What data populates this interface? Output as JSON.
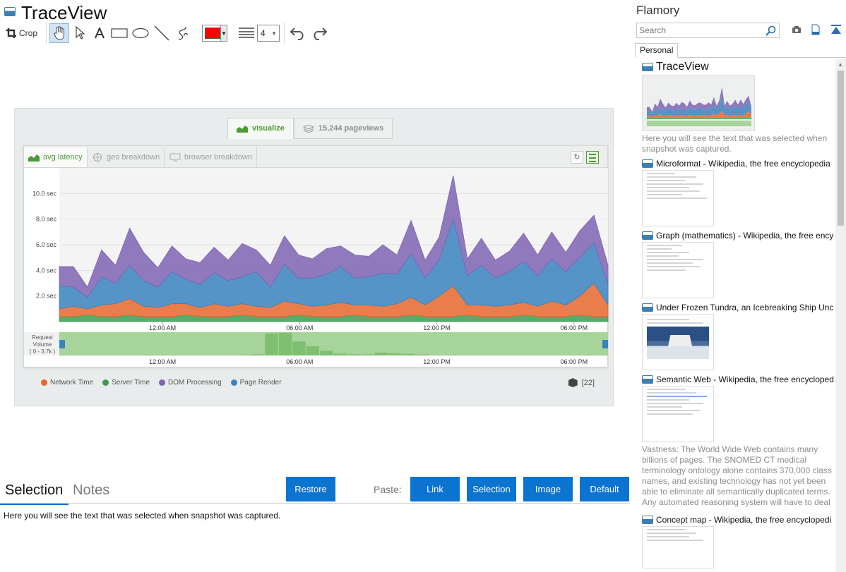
{
  "app": {
    "title": "TraceView"
  },
  "toolbar": {
    "crop_label": "Crop",
    "pen_color": "#ff0000",
    "line_width": "4",
    "tools": [
      "hand-icon",
      "pointer-icon",
      "text-icon",
      "rectangle-icon",
      "ellipse-icon",
      "line-icon",
      "freehand-icon",
      "color-picker",
      "line-style-icon",
      "width-selector",
      "undo-icon",
      "redo-icon"
    ]
  },
  "snapshot": {
    "tabs": {
      "visualize": "visualize",
      "pageviews": "15,244 pageviews"
    },
    "panel_tabs": [
      "avg latency",
      "geo breakdown",
      "browser breakdown"
    ],
    "request_volume_label": [
      "Request",
      "Volume",
      "( 0 - 3.7k )"
    ],
    "legend": [
      {
        "label": "Network Time",
        "color": "#e6672e"
      },
      {
        "label": "Server Time",
        "color": "#3f9b52"
      },
      {
        "label": "DOM Processing",
        "color": "#7e64b3"
      },
      {
        "label": "Page Render",
        "color": "#3a83c0"
      }
    ],
    "count": "[22]"
  },
  "chart_data": {
    "type": "area",
    "title": "",
    "xlabel": "",
    "ylabel": "",
    "y_ticks": [
      "10.0 sec",
      "8.0 sec",
      "6.0 sec",
      "4.0 sec",
      "2.0 sec"
    ],
    "x_ticks": [
      "12:00 AM",
      "06:00 AM",
      "12:00 PM",
      "06:00 PM"
    ],
    "ylim": [
      0,
      12
    ],
    "stacked": true,
    "series": [
      {
        "name": "Server Time",
        "color": "#3f9b52",
        "values": [
          0.4,
          0.4,
          0.5,
          0.4,
          0.4,
          0.5,
          0.4,
          0.4,
          0.4,
          0.5,
          0.4,
          0.4,
          0.4,
          0.5,
          0.4,
          0.4,
          0.4,
          0.5,
          0.4,
          0.4,
          0.4,
          0.5,
          0.4,
          0.4,
          0.4,
          0.5,
          0.4,
          0.4,
          0.4,
          0.5,
          0.4,
          0.4,
          0.4,
          0.5,
          0.4,
          0.4,
          0.4,
          0.5,
          0.4,
          0.4
        ]
      },
      {
        "name": "Network Time",
        "color": "#e6672e",
        "values": [
          0.6,
          0.8,
          0.5,
          0.9,
          1.0,
          1.3,
          0.8,
          0.7,
          1.0,
          0.9,
          0.7,
          1.0,
          0.8,
          0.9,
          0.8,
          0.7,
          1.2,
          0.9,
          0.8,
          0.9,
          1.1,
          0.8,
          0.9,
          0.8,
          1.0,
          1.4,
          0.9,
          1.6,
          2.4,
          0.8,
          0.9,
          0.8,
          0.9,
          1.0,
          0.8,
          1.2,
          0.9,
          1.5,
          2.6,
          0.9
        ]
      },
      {
        "name": "Page Render",
        "color": "#3a83c0",
        "values": [
          1.8,
          1.5,
          0.9,
          2.2,
          1.6,
          2.6,
          2.0,
          1.6,
          2.5,
          1.9,
          1.8,
          2.4,
          2.0,
          2.1,
          2.7,
          1.6,
          2.9,
          2.0,
          2.2,
          2.4,
          2.8,
          2.1,
          2.2,
          2.6,
          2.3,
          3.4,
          2.1,
          2.8,
          5.2,
          2.3,
          3.1,
          2.2,
          2.6,
          3.2,
          2.4,
          3.3,
          2.6,
          3.0,
          3.2,
          1.6
        ]
      },
      {
        "name": "DOM Processing",
        "color": "#7e64b3",
        "values": [
          1.5,
          1.6,
          0.8,
          2.1,
          1.4,
          2.9,
          2.2,
          1.5,
          2.0,
          1.6,
          1.7,
          2.0,
          1.6,
          2.6,
          1.7,
          1.7,
          2.2,
          1.8,
          1.5,
          2.0,
          1.6,
          1.8,
          1.6,
          2.2,
          1.5,
          2.6,
          1.4,
          1.8,
          3.4,
          1.3,
          2.1,
          1.4,
          1.6,
          2.2,
          1.6,
          2.1,
          1.5,
          2.1,
          2.1,
          1.5
        ]
      }
    ],
    "request_volume": [
      0.02,
      0.02,
      0.02,
      0.02,
      0.02,
      0.02,
      0.02,
      0.02,
      0.02,
      0.02,
      0.02,
      0.02,
      0.02,
      0.03,
      0.05,
      0.95,
      0.98,
      0.6,
      0.4,
      0.2,
      0.08,
      0.05,
      0.05,
      0.12,
      0.09,
      0.07,
      0.04,
      0.02,
      0.02,
      0.02,
      0.02,
      0.02,
      0.02,
      0.02,
      0.02,
      0.02,
      0.02,
      0.02,
      0.02,
      0.02
    ]
  },
  "bottom": {
    "tab_selection": "Selection",
    "tab_notes": "Notes",
    "restore": "Restore",
    "paste_label": "Paste:",
    "paste_link": "Link",
    "paste_selection": "Selection",
    "paste_image": "Image",
    "paste_default": "Default",
    "selection_text": "Here you will see the text that was selected when snapshot was captured."
  },
  "sidebar": {
    "title": "Flamory",
    "search_placeholder": "Search",
    "tab": "Personal",
    "entries": [
      {
        "title": "TraceView",
        "excerpt": "Here you will see the text that was selected when snapshot was captured."
      },
      {
        "title": "Microformat - Wikipedia, the free encyclopedia",
        "excerpt": ""
      },
      {
        "title": "Graph (mathematics) - Wikipedia, the free ency",
        "excerpt": ""
      },
      {
        "title": "Under Frozen Tundra, an Icebreaking Ship Unco",
        "excerpt": ""
      },
      {
        "title": "Semantic Web - Wikipedia, the free encycloped",
        "excerpt": "Vastness: The World Wide Web contains many billions of pages. The SNOMED CT medical terminology ontology alone contains 370,000 class names, and existing technology has not yet been able to eliminate all semantically duplicated terms. Any automated reasoning system will have to deal with truly huge inputs."
      },
      {
        "title": "Concept map - Wikipedia, the free encyclopedi",
        "excerpt": ""
      }
    ]
  }
}
